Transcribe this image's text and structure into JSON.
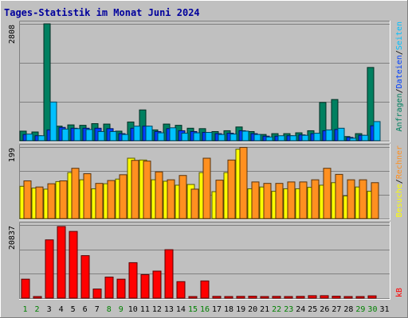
{
  "chart_data": {
    "type": "bar",
    "title": "Tages-Statistik im Monat Juni 2024",
    "categories": [
      "1",
      "2",
      "3",
      "4",
      "5",
      "6",
      "7",
      "8",
      "9",
      "10",
      "11",
      "12",
      "13",
      "14",
      "15",
      "16",
      "17",
      "18",
      "19",
      "20",
      "21",
      "22",
      "23",
      "24",
      "25",
      "26",
      "27",
      "28",
      "29",
      "30",
      "31"
    ],
    "weekend_days": [
      "1",
      "2",
      "8",
      "9",
      "15",
      "16",
      "22",
      "23",
      "29",
      "30"
    ],
    "panels": [
      {
        "id": "top",
        "ymax_label": "2808",
        "ylim": [
          0,
          2808
        ],
        "series": [
          {
            "name": "Anfragen",
            "color": "#008060",
            "values": [
              230,
              210,
              2808,
              350,
              380,
              370,
              410,
              400,
              230,
              450,
              740,
              260,
              400,
              370,
              300,
              290,
              220,
              240,
              330,
              220,
              150,
              170,
              170,
              190,
              240,
              920,
              990,
              100,
              170,
              1760,
              0
            ]
          },
          {
            "name": "Dateien",
            "color": "#0040ff",
            "values": [
              150,
              120,
              260,
              320,
              300,
              300,
              300,
              290,
              170,
              300,
              350,
              220,
              290,
              240,
              220,
              200,
              170,
              180,
              240,
              170,
              110,
              110,
              120,
              140,
              170,
              240,
              270,
              80,
              130,
              360,
              0
            ]
          },
          {
            "name": "Seiten",
            "color": "#00c0ff",
            "values": [
              160,
              120,
              930,
              280,
              290,
              270,
              220,
              220,
              150,
              350,
              350,
              190,
              310,
              180,
              190,
              200,
              150,
              160,
              230,
              150,
              90,
              120,
              120,
              130,
              180,
              260,
              300,
              60,
              130,
              460,
              0
            ]
          }
        ]
      },
      {
        "id": "middle",
        "ymax_label": "199",
        "ylim": [
          0,
          199
        ],
        "series": [
          {
            "name": "Besuche",
            "color": "#ffff00",
            "values": [
              90,
              85,
              82,
              103,
              128,
              108,
              83,
              97,
              110,
              168,
              163,
              108,
              104,
              93,
              95,
              128,
              75,
              128,
              193,
              83,
              88,
              76,
              83,
              83,
              87,
              93,
              100,
              63,
              88,
              76,
              0
            ]
          },
          {
            "name": "Rechner",
            "color": "#ff9020",
            "values": [
              105,
              88,
              97,
              105,
              140,
              125,
              98,
              106,
              122,
              162,
              160,
              130,
              108,
              120,
              82,
              168,
              107,
              163,
              198,
              102,
              98,
              98,
              102,
              102,
              108,
              140,
              123,
              108,
              108,
              100,
              0
            ]
          }
        ]
      },
      {
        "id": "bottom",
        "ymax_label": "20837",
        "ylim": [
          0,
          20837
        ],
        "series": [
          {
            "name": "kB",
            "color": "#ff0000",
            "values": [
              5400,
              400,
              16600,
              20400,
              19000,
              12100,
              2600,
              6000,
              5400,
              10100,
              6700,
              7700,
              13800,
              4700,
              400,
              4900,
              500,
              300,
              500,
              550,
              450,
              500,
              400,
              500,
              700,
              700,
              550,
              350,
              400,
              650,
              0
            ]
          }
        ]
      }
    ],
    "side_labels": {
      "top": [
        {
          "text": "Anfragen",
          "color": "#008060"
        },
        {
          "text": "/",
          "color": "#000000"
        },
        {
          "text": "Dateien",
          "color": "#0040ff"
        },
        {
          "text": "/",
          "color": "#000000"
        },
        {
          "text": "Seiten",
          "color": "#00c0ff"
        }
      ],
      "middle": [
        {
          "text": "Besuche",
          "color": "#ffff00"
        },
        {
          "text": "/",
          "color": "#000000"
        },
        {
          "text": "Rechner",
          "color": "#ff9020"
        }
      ],
      "bottom": [
        {
          "text": "kB",
          "color": "#ff0000"
        }
      ]
    },
    "colors": {
      "background": "#c0c0c0",
      "title": "#00009c",
      "tick_weekday": "#000000",
      "tick_weekend": "#008000"
    },
    "grid": true,
    "legend": "right-vertical"
  }
}
